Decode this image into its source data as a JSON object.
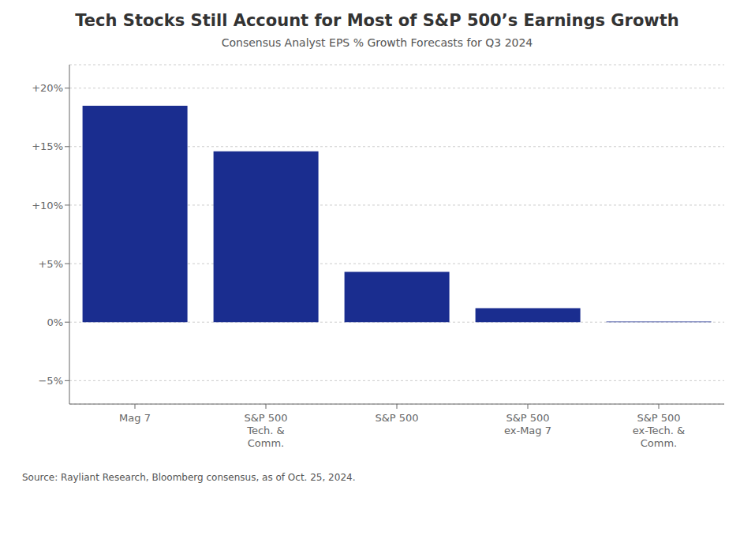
{
  "chart_data": {
    "type": "bar",
    "title": "Tech Stocks Still Account for Most of S&P 500’s Earnings Growth",
    "subtitle": "Consensus Analyst EPS % Growth Forecasts for Q3 2024",
    "annotations": [
      "Source: Rayliant Research, Bloomberg consensus, as of Oct. 25, 2024."
    ],
    "categories": [
      "Mag 7",
      "S&P 500\nTech. &\nComm.",
      "S&P 500",
      "S&P 500\nex-Mag 7",
      "S&P 500\nex-Tech. &\nComm."
    ],
    "values": [
      18.5,
      14.6,
      4.3,
      1.2,
      0.05
    ],
    "color": "#1a2d8f",
    "ylim": [
      -7,
      22
    ],
    "yticks": [
      {
        "value": -5,
        "label": "−5%"
      },
      {
        "value": 0,
        "label": "0%"
      },
      {
        "value": 5,
        "label": "+5%"
      },
      {
        "value": 10,
        "label": "+10%"
      },
      {
        "value": 15,
        "label": "+15%"
      },
      {
        "value": 20,
        "label": "+20%"
      }
    ],
    "grid": true
  }
}
